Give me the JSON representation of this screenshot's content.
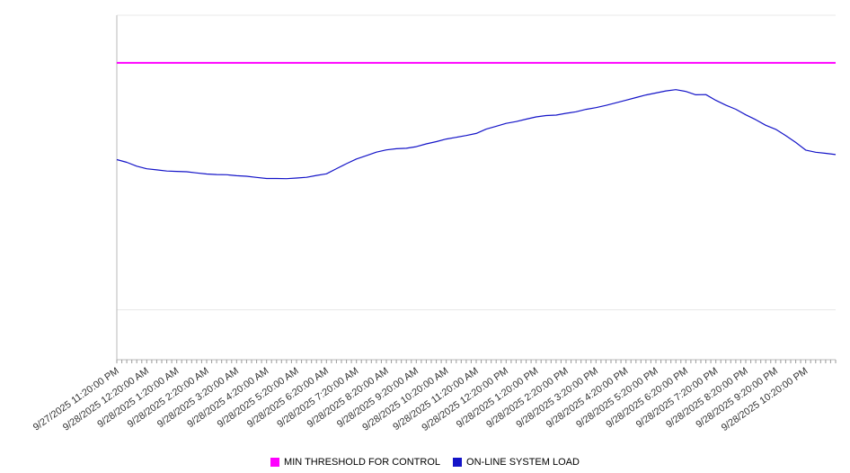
{
  "chart_data": {
    "type": "line",
    "title": "",
    "xlabel": "",
    "ylabel": "",
    "ylim": [
      0,
      100
    ],
    "hours_total": 24,
    "interval_minutes": 20,
    "minor_ticks_per_hour": 6,
    "grid_on": true,
    "legend_position": "bottom-center",
    "gridline_values": [
      0,
      14.5,
      86.2,
      100
    ],
    "grid_color": "#e8e8e8",
    "axis_color": "#b8b8b8",
    "tick_color": "#9a9a9a",
    "label_color": "#333333",
    "x_tick_labels": [
      "9/27/2025 11:20:00 PM",
      "9/28/2025 12:20:00 AM",
      "9/28/2025 1:20:00 AM",
      "9/28/2025 2:20:00 AM",
      "9/28/2025 3:20:00 AM",
      "9/28/2025 4:20:00 AM",
      "9/28/2025 5:20:00 AM",
      "9/28/2025 6:20:00 AM",
      "9/28/2025 7:20:00 AM",
      "9/28/2025 8:20:00 AM",
      "9/28/2025 9:20:00 AM",
      "9/28/2025 10:20:00 AM",
      "9/28/2025 11:20:00 AM",
      "9/28/2025 12:20:00 PM",
      "9/28/2025 1:20:00 PM",
      "9/28/2025 2:20:00 PM",
      "9/28/2025 3:20:00 PM",
      "9/28/2025 4:20:00 PM",
      "9/28/2025 5:20:00 PM",
      "9/28/2025 6:20:00 PM",
      "9/28/2025 7:20:00 PM",
      "9/28/2025 8:20:00 PM",
      "9/28/2025 9:20:00 PM",
      "9/28/2025 10:20:00 PM"
    ],
    "series": [
      {
        "name": "MIN THRESHOLD FOR CONTROL",
        "color": "#ff00ff",
        "style": "constant-horizontal-line",
        "constant_value": 86.2
      },
      {
        "name": "ON-LINE SYSTEM LOAD",
        "color": "#1414c8",
        "style": "line",
        "values_20min": [
          58.2,
          57.2,
          56.2,
          55.4,
          55.1,
          54.8,
          54.6,
          54.3,
          54.0,
          53.8,
          53.6,
          53.4,
          53.3,
          53.1,
          52.9,
          52.7,
          52.6,
          52.6,
          52.7,
          53.0,
          53.5,
          54.0,
          55.2,
          56.6,
          58.0,
          59.0,
          59.9,
          60.6,
          61.0,
          61.5,
          61.9,
          62.6,
          63.3,
          64.0,
          64.6,
          65.2,
          65.8,
          66.7,
          67.6,
          68.4,
          69.0,
          69.6,
          70.2,
          70.7,
          71.1,
          71.5,
          72.0,
          72.6,
          73.1,
          73.8,
          74.5,
          75.2,
          75.9,
          76.6,
          77.3,
          77.8,
          78.1,
          77.6,
          76.6,
          76.9,
          75.2,
          74.0,
          72.6,
          71.0,
          69.6,
          68.1,
          66.6,
          64.8,
          62.8,
          60.6,
          60.0,
          59.6,
          59.2
        ]
      }
    ]
  }
}
